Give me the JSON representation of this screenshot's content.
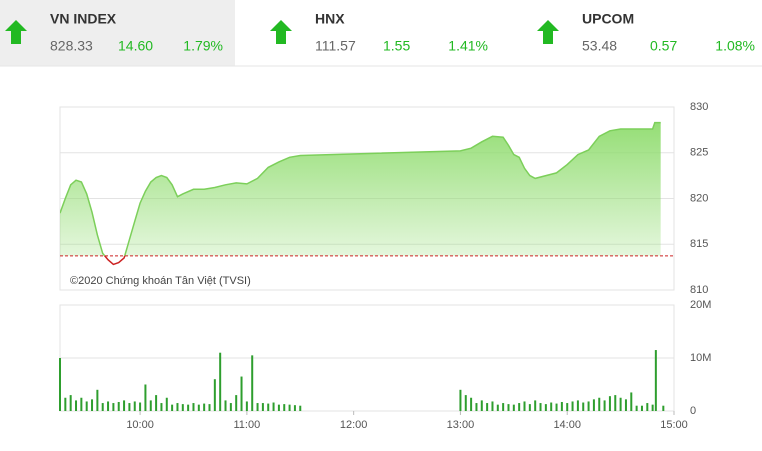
{
  "indices": [
    {
      "name": "VN INDEX",
      "value": "828.33",
      "change": "14.60",
      "percent": "1.79%"
    },
    {
      "name": "HNX",
      "value": "111.57",
      "change": "1.55",
      "percent": "1.41%"
    },
    {
      "name": "UPCOM",
      "value": "53.48",
      "change": "0.57",
      "percent": "1.08%"
    }
  ],
  "chart_data": [
    {
      "type": "line",
      "annotation": "©2020 Chứng khoán Tân Việt (TVSI)",
      "color": "#7ccf5a",
      "below_color": "#cc2222",
      "reference_line": 813.73,
      "x": [
        9.25,
        9.3,
        9.35,
        9.4,
        9.45,
        9.5,
        9.55,
        9.6,
        9.65,
        9.7,
        9.75,
        9.8,
        9.85,
        9.9,
        9.95,
        10.0,
        10.05,
        10.1,
        10.15,
        10.2,
        10.25,
        10.3,
        10.35,
        10.4,
        10.5,
        10.6,
        10.7,
        10.8,
        10.9,
        11.0,
        11.1,
        11.2,
        11.3,
        11.4,
        11.5,
        13.0,
        13.1,
        13.2,
        13.3,
        13.4,
        13.45,
        13.5,
        13.55,
        13.6,
        13.65,
        13.7,
        13.8,
        13.9,
        14.0,
        14.1,
        14.2,
        14.3,
        14.4,
        14.5,
        14.6,
        14.7,
        14.8,
        14.82,
        14.875
      ],
      "values": [
        818.4,
        820,
        821.5,
        822,
        821.8,
        820.5,
        818.5,
        816,
        814,
        813.3,
        812.8,
        813,
        813.5,
        815.5,
        817.5,
        819.5,
        820.8,
        821.8,
        822.3,
        822.5,
        822.3,
        821.5,
        820.2,
        820.5,
        821,
        821,
        821.2,
        821.5,
        821.7,
        821.6,
        822.2,
        823.4,
        824,
        824.5,
        824.7,
        825.2,
        825.5,
        826.2,
        826.8,
        826.7,
        825.8,
        824.8,
        824.5,
        823.3,
        822.5,
        822.2,
        822.5,
        822.8,
        823.7,
        824.8,
        825.3,
        826.8,
        827.4,
        827.6,
        827.6,
        827.6,
        827.6,
        828.3,
        828.3
      ],
      "xlim": [
        9.25,
        15
      ],
      "ylim": [
        810,
        830
      ],
      "yticks": [
        810,
        815,
        820,
        825,
        830
      ],
      "grid": true
    },
    {
      "type": "bar",
      "color": "#2e9e2e",
      "x": [
        9.25,
        9.3,
        9.35,
        9.4,
        9.45,
        9.5,
        9.55,
        9.6,
        9.65,
        9.7,
        9.75,
        9.8,
        9.85,
        9.9,
        9.95,
        10.0,
        10.05,
        10.1,
        10.15,
        10.2,
        10.25,
        10.3,
        10.35,
        10.4,
        10.45,
        10.5,
        10.55,
        10.6,
        10.65,
        10.7,
        10.75,
        10.8,
        10.85,
        10.9,
        10.95,
        11.0,
        11.05,
        11.1,
        11.15,
        11.2,
        11.25,
        11.3,
        11.35,
        11.4,
        11.45,
        11.5,
        13.0,
        13.05,
        13.1,
        13.15,
        13.2,
        13.25,
        13.3,
        13.35,
        13.4,
        13.45,
        13.5,
        13.55,
        13.6,
        13.65,
        13.7,
        13.75,
        13.8,
        13.85,
        13.9,
        13.95,
        14.0,
        14.05,
        14.1,
        14.15,
        14.2,
        14.25,
        14.3,
        14.35,
        14.4,
        14.45,
        14.5,
        14.55,
        14.6,
        14.65,
        14.7,
        14.75,
        14.8,
        14.83,
        14.9
      ],
      "values": [
        10000000,
        2500000,
        3000000,
        2000000,
        2500000,
        1800000,
        2200000,
        4000000,
        1500000,
        1800000,
        1500000,
        1700000,
        2000000,
        1500000,
        1800000,
        1600000,
        5000000,
        2000000,
        3000000,
        1500000,
        2500000,
        1200000,
        1500000,
        1300000,
        1200000,
        1500000,
        1200000,
        1400000,
        1300000,
        6000000,
        11000000,
        2000000,
        1500000,
        3000000,
        6500000,
        1800000,
        10500000,
        1500000,
        1500000,
        1400000,
        1600000,
        1200000,
        1300000,
        1200000,
        1100000,
        1000000,
        4000000,
        3000000,
        2500000,
        1500000,
        2000000,
        1500000,
        1800000,
        1200000,
        1500000,
        1300000,
        1200000,
        1500000,
        1800000,
        1300000,
        2000000,
        1500000,
        1300000,
        1600000,
        1400000,
        1700000,
        1500000,
        1800000,
        2000000,
        1600000,
        1800000,
        2200000,
        2500000,
        2000000,
        2800000,
        3000000,
        2500000,
        2200000,
        3500000,
        1000000,
        1000000,
        1500000,
        1200000,
        11500000,
        1000000
      ],
      "xlim": [
        9.25,
        15
      ],
      "ylim": [
        0,
        20000000
      ],
      "yticks": [
        0,
        {
          "value": 10000000,
          "label": "10M"
        },
        {
          "value": 20000000,
          "label": "20M"
        }
      ],
      "xticks": [
        {
          "value": 10,
          "label": "10:00"
        },
        {
          "value": 11,
          "label": "11:00"
        },
        {
          "value": 12,
          "label": "12:00"
        },
        {
          "value": 13,
          "label": "13:00"
        },
        {
          "value": 14,
          "label": "14:00"
        },
        {
          "value": 15,
          "label": "15:00"
        }
      ],
      "grid": true
    }
  ]
}
